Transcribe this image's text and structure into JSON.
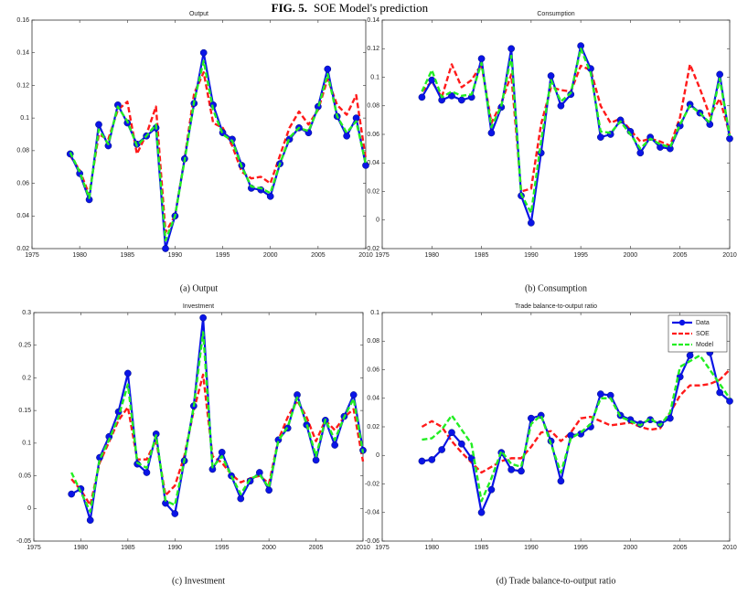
{
  "figure_label": "FIG. 5.",
  "figure_title": "SOE Model's prediction",
  "chart_data": [
    {
      "type": "line",
      "title": "Output",
      "caption": "(a) Output",
      "x": [
        1979,
        1980,
        1981,
        1982,
        1983,
        1984,
        1985,
        1986,
        1987,
        1988,
        1989,
        1990,
        1991,
        1992,
        1993,
        1994,
        1995,
        1996,
        1997,
        1998,
        1999,
        2000,
        2001,
        2002,
        2003,
        2004,
        2005,
        2006,
        2007,
        2008,
        2009,
        2010
      ],
      "xlim": [
        1975,
        2010
      ],
      "xticks": [
        1975,
        1980,
        1985,
        1990,
        1995,
        2000,
        2005,
        2010
      ],
      "ylim": [
        0.02,
        0.16
      ],
      "yticks": [
        0.02,
        0.04,
        0.06,
        0.08,
        0.1,
        0.12,
        0.14,
        0.16
      ],
      "grid": false,
      "series": [
        {
          "color": "#ff1a1a",
          "dashed": true,
          "marker": false,
          "values": [
            0.077,
            0.068,
            0.053,
            0.09,
            0.087,
            0.105,
            0.11,
            0.078,
            0.09,
            0.107,
            0.03,
            0.04,
            0.075,
            0.115,
            0.128,
            0.097,
            0.094,
            0.083,
            0.067,
            0.063,
            0.064,
            0.06,
            0.077,
            0.094,
            0.104,
            0.096,
            0.105,
            0.124,
            0.108,
            0.102,
            0.114,
            0.075
          ]
        },
        {
          "color": "#0a14e6",
          "dashed": false,
          "marker": true,
          "values": [
            0.078,
            0.066,
            0.05,
            0.096,
            0.083,
            0.108,
            0.097,
            0.084,
            0.089,
            0.094,
            0.02,
            0.04,
            0.075,
            0.109,
            0.14,
            0.108,
            0.091,
            0.087,
            0.071,
            0.057,
            0.056,
            0.052,
            0.072,
            0.087,
            0.094,
            0.091,
            0.107,
            0.13,
            0.101,
            0.089,
            0.1,
            0.071
          ]
        },
        {
          "color": "#22ee22",
          "dashed": true,
          "marker": false,
          "values": [
            0.079,
            0.067,
            0.051,
            0.093,
            0.084,
            0.107,
            0.098,
            0.083,
            0.089,
            0.096,
            0.025,
            0.04,
            0.074,
            0.11,
            0.135,
            0.105,
            0.09,
            0.086,
            0.07,
            0.058,
            0.057,
            0.054,
            0.072,
            0.088,
            0.094,
            0.092,
            0.106,
            0.127,
            0.101,
            0.091,
            0.098,
            0.072
          ]
        }
      ]
    },
    {
      "type": "line",
      "title": "Consumption",
      "caption": "(b) Consumption",
      "x": [
        1979,
        1980,
        1981,
        1982,
        1983,
        1984,
        1985,
        1986,
        1987,
        1988,
        1989,
        1990,
        1991,
        1992,
        1993,
        1994,
        1995,
        1996,
        1997,
        1998,
        1999,
        2000,
        2001,
        2002,
        2003,
        2004,
        2005,
        2006,
        2007,
        2008,
        2009,
        2010
      ],
      "xlim": [
        1975,
        2010
      ],
      "xticks": [
        1975,
        1980,
        1985,
        1990,
        1995,
        2000,
        2005,
        2010
      ],
      "ylim": [
        -0.02,
        0.14
      ],
      "yticks": [
        -0.02,
        0,
        0.02,
        0.04,
        0.06,
        0.08,
        0.1,
        0.12,
        0.14
      ],
      "grid": false,
      "series": [
        {
          "color": "#ff1a1a",
          "dashed": true,
          "marker": false,
          "values": [
            0.09,
            0.097,
            0.086,
            0.109,
            0.093,
            0.098,
            0.109,
            0.068,
            0.082,
            0.102,
            0.02,
            0.022,
            0.067,
            0.093,
            0.091,
            0.09,
            0.108,
            0.105,
            0.08,
            0.068,
            0.071,
            0.063,
            0.055,
            0.057,
            0.055,
            0.052,
            0.072,
            0.109,
            0.092,
            0.073,
            0.085,
            0.06
          ]
        },
        {
          "color": "#0a14e6",
          "dashed": false,
          "marker": true,
          "values": [
            0.086,
            0.098,
            0.084,
            0.087,
            0.084,
            0.086,
            0.113,
            0.061,
            0.079,
            0.12,
            0.017,
            -0.002,
            0.047,
            0.101,
            0.08,
            0.088,
            0.122,
            0.106,
            0.058,
            0.06,
            0.07,
            0.062,
            0.047,
            0.058,
            0.051,
            0.05,
            0.066,
            0.081,
            0.075,
            0.067,
            0.102,
            0.057
          ]
        },
        {
          "color": "#22ee22",
          "dashed": true,
          "marker": false,
          "values": [
            0.09,
            0.105,
            0.086,
            0.09,
            0.087,
            0.088,
            0.11,
            0.065,
            0.08,
            0.115,
            0.018,
            0.005,
            0.055,
            0.098,
            0.083,
            0.089,
            0.12,
            0.103,
            0.062,
            0.061,
            0.069,
            0.06,
            0.05,
            0.057,
            0.053,
            0.051,
            0.067,
            0.08,
            0.075,
            0.068,
            0.099,
            0.059
          ]
        }
      ]
    },
    {
      "type": "line",
      "title": "Investment",
      "caption": "(c) Investment",
      "x": [
        1979,
        1980,
        1981,
        1982,
        1983,
        1984,
        1985,
        1986,
        1987,
        1988,
        1989,
        1990,
        1991,
        1992,
        1993,
        1994,
        1995,
        1996,
        1997,
        1998,
        1999,
        2000,
        2001,
        2002,
        2003,
        2004,
        2005,
        2006,
        2007,
        2008,
        2009,
        2010
      ],
      "xlim": [
        1975,
        2010
      ],
      "xticks": [
        1975,
        1980,
        1985,
        1990,
        1995,
        2000,
        2005,
        2010
      ],
      "ylim": [
        -0.05,
        0.3
      ],
      "yticks": [
        -0.05,
        0,
        0.05,
        0.1,
        0.15,
        0.2,
        0.25,
        0.3
      ],
      "grid": false,
      "series": [
        {
          "color": "#ff1a1a",
          "dashed": true,
          "marker": false,
          "values": [
            0.045,
            0.028,
            0.005,
            0.07,
            0.102,
            0.135,
            0.155,
            0.075,
            0.075,
            0.105,
            0.02,
            0.035,
            0.08,
            0.15,
            0.205,
            0.08,
            0.07,
            0.052,
            0.04,
            0.046,
            0.05,
            0.038,
            0.105,
            0.14,
            0.165,
            0.14,
            0.103,
            0.135,
            0.12,
            0.14,
            0.152,
            0.072
          ]
        },
        {
          "color": "#0a14e6",
          "dashed": false,
          "marker": true,
          "values": [
            0.022,
            0.03,
            -0.018,
            0.078,
            0.11,
            0.148,
            0.207,
            0.068,
            0.055,
            0.114,
            0.008,
            -0.008,
            0.073,
            0.157,
            0.292,
            0.06,
            0.086,
            0.05,
            0.015,
            0.042,
            0.055,
            0.028,
            0.105,
            0.123,
            0.174,
            0.128,
            0.074,
            0.135,
            0.097,
            0.141,
            0.174,
            0.089
          ]
        },
        {
          "color": "#22ee22",
          "dashed": true,
          "marker": false,
          "values": [
            0.055,
            0.025,
            -0.005,
            0.075,
            0.105,
            0.14,
            0.19,
            0.07,
            0.062,
            0.112,
            0.012,
            0.005,
            0.074,
            0.155,
            0.27,
            0.063,
            0.08,
            0.05,
            0.022,
            0.045,
            0.052,
            0.032,
            0.104,
            0.125,
            0.17,
            0.13,
            0.08,
            0.136,
            0.105,
            0.14,
            0.168,
            0.085
          ]
        }
      ]
    },
    {
      "type": "line",
      "title": "Trade balance-to-output ratio",
      "caption": "(d) Trade balance-to-output ratio",
      "x": [
        1979,
        1980,
        1981,
        1982,
        1983,
        1984,
        1985,
        1986,
        1987,
        1988,
        1989,
        1990,
        1991,
        1992,
        1993,
        1994,
        1995,
        1996,
        1997,
        1998,
        1999,
        2000,
        2001,
        2002,
        2003,
        2004,
        2005,
        2006,
        2007,
        2008,
        2009,
        2010
      ],
      "xlim": [
        1975,
        2010
      ],
      "xticks": [
        1975,
        1980,
        1985,
        1990,
        1995,
        2000,
        2005,
        2010
      ],
      "ylim": [
        -0.06,
        0.1
      ],
      "yticks": [
        -0.06,
        -0.04,
        -0.02,
        0,
        0.02,
        0.04,
        0.06,
        0.08,
        0.1
      ],
      "grid": false,
      "legend": "upper right",
      "series": [
        {
          "name": "SOE",
          "color": "#ff1a1a",
          "dashed": true,
          "marker": false,
          "values": [
            0.02,
            0.024,
            0.02,
            0.01,
            0.002,
            -0.005,
            -0.012,
            -0.008,
            -0.004,
            -0.002,
            -0.002,
            0.006,
            0.016,
            0.017,
            0.01,
            0.016,
            0.026,
            0.027,
            0.024,
            0.021,
            0.022,
            0.023,
            0.02,
            0.018,
            0.019,
            0.03,
            0.042,
            0.049,
            0.049,
            0.05,
            0.053,
            0.06
          ]
        },
        {
          "name": "Data",
          "color": "#0a14e6",
          "dashed": false,
          "marker": true,
          "values": [
            -0.004,
            -0.003,
            0.004,
            0.016,
            0.008,
            -0.002,
            -0.04,
            -0.024,
            0.002,
            -0.01,
            -0.011,
            0.026,
            0.028,
            0.01,
            -0.018,
            0.014,
            0.015,
            0.02,
            0.043,
            0.042,
            0.028,
            0.025,
            0.022,
            0.025,
            0.022,
            0.026,
            0.055,
            0.07,
            0.08,
            0.072,
            0.044,
            0.038
          ]
        },
        {
          "name": "Model",
          "color": "#22ee22",
          "dashed": true,
          "marker": false,
          "values": [
            0.011,
            0.012,
            0.018,
            0.028,
            0.018,
            0.008,
            -0.032,
            -0.016,
            0.003,
            -0.006,
            -0.008,
            0.022,
            0.028,
            0.008,
            -0.012,
            0.012,
            0.016,
            0.022,
            0.04,
            0.04,
            0.027,
            0.024,
            0.021,
            0.026,
            0.021,
            0.03,
            0.062,
            0.066,
            0.07,
            0.06,
            0.05,
            0.04
          ]
        }
      ]
    }
  ]
}
